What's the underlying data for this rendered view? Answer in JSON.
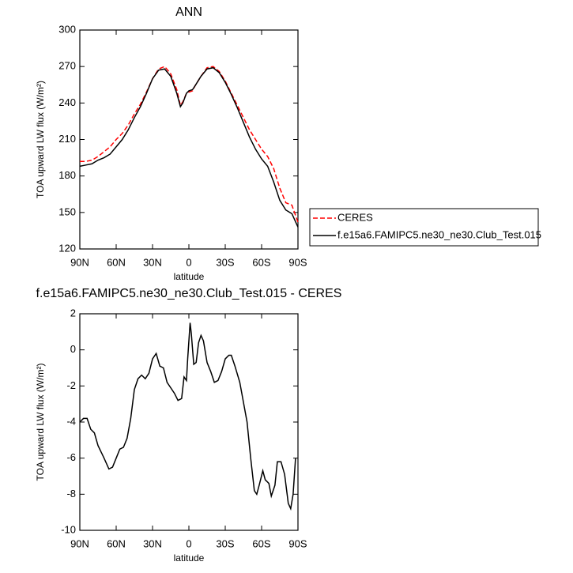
{
  "chart_data": [
    {
      "type": "line",
      "title": "ANN",
      "xlabel": "latitude",
      "ylabel": "TOA upward LW flux (W/m²)",
      "x": [
        90,
        85,
        80,
        75,
        70,
        65,
        60,
        55,
        50,
        45,
        40,
        35,
        30,
        25,
        20,
        15,
        10,
        7,
        5,
        2,
        0,
        -3,
        -5,
        -10,
        -15,
        -20,
        -25,
        -30,
        -35,
        -40,
        -45,
        -50,
        -55,
        -60,
        -65,
        -70,
        -75,
        -80,
        -85,
        -90
      ],
      "series": [
        {
          "name": "CERES",
          "color": "#ff0000",
          "line_style": "dashed",
          "values": [
            192,
            192,
            193,
            196,
            200,
            204,
            210,
            215,
            222,
            231,
            239,
            249,
            260,
            268,
            270,
            264,
            251,
            238,
            241,
            248,
            249,
            250,
            254,
            262,
            269,
            270,
            266,
            258,
            248,
            238,
            228,
            218,
            210,
            202,
            196,
            186,
            170,
            158,
            156,
            142
          ]
        },
        {
          "name": "f.e15a6.FAMIPC5.ne30_ne30.Club_Test.015",
          "color": "#000000",
          "line_style": "solid",
          "values": [
            188,
            189,
            190,
            193,
            195,
            198,
            204,
            210,
            218,
            228,
            237,
            248,
            260,
            267,
            268,
            262,
            248,
            237,
            240,
            248,
            250,
            251,
            254,
            262,
            268,
            269,
            265,
            257,
            247,
            236,
            224,
            212,
            202,
            194,
            188,
            175,
            160,
            152,
            149,
            138
          ]
        }
      ],
      "xlim": [
        90,
        -90
      ],
      "xticks": [
        {
          "value": 90,
          "label": "90N"
        },
        {
          "value": 60,
          "label": "60N"
        },
        {
          "value": 30,
          "label": "30N"
        },
        0,
        {
          "value": -30,
          "label": "30S"
        },
        {
          "value": -60,
          "label": "60S"
        },
        {
          "value": -90,
          "label": "90S"
        }
      ],
      "ylim": [
        120,
        300
      ],
      "yticks": [
        120,
        150,
        180,
        210,
        240,
        270,
        300
      ],
      "legend": "right"
    },
    {
      "type": "line",
      "title": "f.e15a6.FAMIPC5.ne30_ne30.Club_Test.015 - CERES",
      "xlabel": "latitude",
      "ylabel": "TOA upward LW flux (W/m²)",
      "x": [
        90,
        87,
        84,
        81,
        78,
        75,
        70,
        66,
        63,
        60,
        57,
        54,
        51,
        48,
        45,
        42,
        39,
        36,
        33,
        30,
        27,
        24,
        21,
        18,
        15,
        12,
        9,
        6,
        4,
        2,
        1,
        -1,
        -2,
        -4,
        -6,
        -8,
        -10,
        -12,
        -15,
        -18,
        -21,
        -24,
        -27,
        -30,
        -33,
        -35,
        -38,
        -42,
        -45,
        -48,
        -51,
        -54,
        -56,
        -58,
        -61,
        -63,
        -66,
        -68,
        -71,
        -73,
        -76,
        -79,
        -82,
        -84,
        -86,
        -88
      ],
      "series": [
        {
          "name": "f.e15a6.FAMIPC5.ne30_ne30.Club_Test.015 - CERES",
          "color": "#000000",
          "line_style": "solid",
          "values": [
            -4,
            -3.8,
            -3.8,
            -4.4,
            -4.6,
            -5.3,
            -6.0,
            -6.6,
            -6.5,
            -6.0,
            -5.5,
            -5.4,
            -4.9,
            -3.8,
            -2.2,
            -1.6,
            -1.4,
            -1.6,
            -1.3,
            -0.5,
            -0.2,
            -0.9,
            -1.0,
            -1.8,
            -2.1,
            -2.4,
            -2.8,
            -2.7,
            -1.5,
            -1.7,
            -0.5,
            1.5,
            0.9,
            -0.8,
            -0.7,
            0.4,
            0.8,
            0.5,
            -0.7,
            -1.2,
            -1.8,
            -1.7,
            -1.2,
            -0.5,
            -0.3,
            -0.3,
            -0.9,
            -1.8,
            -2.9,
            -4.0,
            -6.0,
            -7.8,
            -8.0,
            -7.5,
            -6.7,
            -7.2,
            -7.4,
            -8.1,
            -7.5,
            -6.2,
            -6.2,
            -6.9,
            -8.5,
            -8.8,
            -8.0,
            -6.0
          ]
        }
      ],
      "xlim": [
        90,
        -90
      ],
      "xticks": [
        {
          "value": 90,
          "label": "90N"
        },
        {
          "value": 60,
          "label": "60N"
        },
        {
          "value": 30,
          "label": "30N"
        },
        0,
        {
          "value": -30,
          "label": "30S"
        },
        {
          "value": -60,
          "label": "60S"
        },
        {
          "value": -90,
          "label": "90S"
        }
      ],
      "ylim": [
        -10,
        2
      ],
      "yticks": [
        -10,
        -8,
        -6,
        -4,
        -2,
        0,
        2
      ]
    }
  ]
}
